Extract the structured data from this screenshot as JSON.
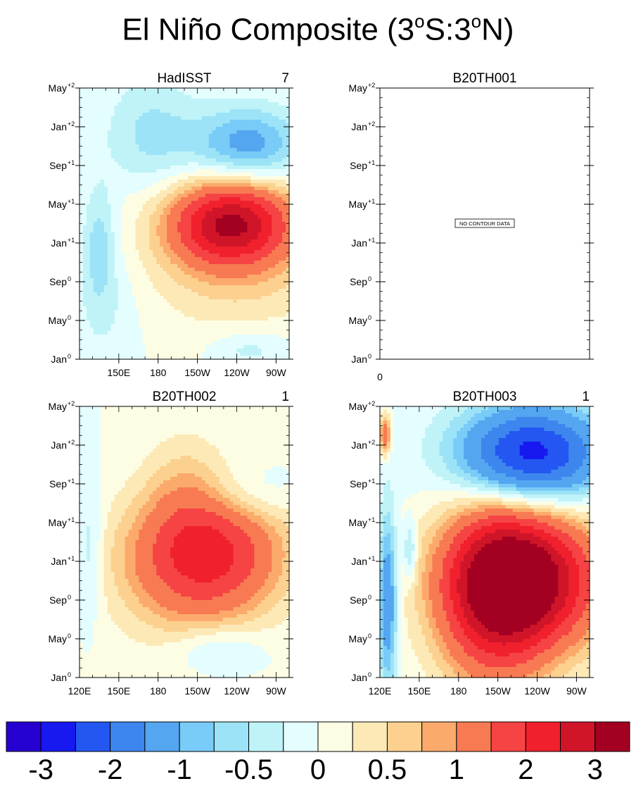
{
  "title": {
    "main": "El Niño Composite (3",
    "deg": "o",
    "mid": "S:3",
    "end": "N)"
  },
  "chart_data": [
    {
      "type": "heatmap",
      "title": "HadISST",
      "corner_label": "7",
      "xlabel": "",
      "ylabel": "",
      "x_ticks": [
        "150E",
        "180",
        "150W",
        "120W",
        "90W"
      ],
      "y_ticks": [
        {
          "base": "Jan",
          "sup": "0"
        },
        {
          "base": "May",
          "sup": "0"
        },
        {
          "base": "Sep",
          "sup": "0"
        },
        {
          "base": "Jan",
          "sup": "+1"
        },
        {
          "base": "May",
          "sup": "+1"
        },
        {
          "base": "Sep",
          "sup": "+1"
        },
        {
          "base": "Jan",
          "sup": "+2"
        },
        {
          "base": "May",
          "sup": "+2"
        }
      ],
      "xlim": [
        120,
        280
      ],
      "ylim": [
        0,
        28
      ],
      "features": [
        {
          "lon": 235,
          "month": 14,
          "value": 2.5,
          "sx": 42,
          "sy": 4
        },
        {
          "lon": 240,
          "month": 12,
          "value": 0.8,
          "sx": 70,
          "sy": 8
        },
        {
          "lon": 248,
          "month": 22,
          "value": -1.3,
          "sx": 42,
          "sy": 4
        },
        {
          "lon": 175,
          "month": 23,
          "value": -0.6,
          "sx": 35,
          "sy": 6
        },
        {
          "lon": 135,
          "month": 12,
          "value": -0.6,
          "sx": 12,
          "sy": 6
        },
        {
          "lon": 140,
          "month": 6,
          "value": -0.3,
          "sx": 25,
          "sy": 7
        },
        {
          "lon": 250,
          "month": 1,
          "value": -0.4,
          "sx": 30,
          "sy": 2
        }
      ]
    },
    {
      "type": "heatmap",
      "title": "B20TH001",
      "corner_label": "",
      "no_data_text": "NO CONTOUR DATA",
      "x_ticks_text": [
        "0"
      ],
      "y_ticks": [
        {
          "base": "Jan",
          "sup": "0"
        },
        {
          "base": "May",
          "sup": "0"
        },
        {
          "base": "Sep",
          "sup": "0"
        },
        {
          "base": "Jan",
          "sup": "+1"
        },
        {
          "base": "May",
          "sup": "+1"
        },
        {
          "base": "Sep",
          "sup": "+1"
        },
        {
          "base": "Jan",
          "sup": "+2"
        },
        {
          "base": "May",
          "sup": "+2"
        }
      ],
      "ylim": [
        0,
        28
      ],
      "features": []
    },
    {
      "type": "heatmap",
      "title": "B20TH002",
      "corner_label": "1",
      "x_ticks": [
        "120E",
        "150E",
        "180",
        "150W",
        "120W",
        "90W"
      ],
      "y_ticks": [
        {
          "base": "Jan",
          "sup": "0"
        },
        {
          "base": "May",
          "sup": "0"
        },
        {
          "base": "Sep",
          "sup": "0"
        },
        {
          "base": "Jan",
          "sup": "+1"
        },
        {
          "base": "May",
          "sup": "+1"
        },
        {
          "base": "Sep",
          "sup": "+1"
        },
        {
          "base": "Jan",
          "sup": "+2"
        },
        {
          "base": "May",
          "sup": "+2"
        }
      ],
      "xlim": [
        120,
        280
      ],
      "ylim": [
        0,
        28
      ],
      "features": [
        {
          "lon": 220,
          "month": 13,
          "value": 1.6,
          "sx": 55,
          "sy": 6
        },
        {
          "lon": 205,
          "month": 11,
          "value": 0.8,
          "sx": 60,
          "sy": 8
        },
        {
          "lon": 200,
          "month": 20,
          "value": 0.4,
          "sx": 30,
          "sy": 6
        },
        {
          "lon": 250,
          "month": 19,
          "value": -0.4,
          "sx": 35,
          "sy": 3
        },
        {
          "lon": 225,
          "month": 3,
          "value": -0.5,
          "sx": 35,
          "sy": 2.5
        },
        {
          "lon": 128,
          "month": 13,
          "value": -0.5,
          "sx": 10,
          "sy": 7
        }
      ]
    },
    {
      "type": "heatmap",
      "title": "B20TH003",
      "corner_label": "1",
      "x_ticks": [
        "120E",
        "150E",
        "180",
        "150W",
        "120W",
        "90W"
      ],
      "y_ticks": [
        {
          "base": "Jan",
          "sup": "0"
        },
        {
          "base": "May",
          "sup": "0"
        },
        {
          "base": "Sep",
          "sup": "0"
        },
        {
          "base": "Jan",
          "sup": "+1"
        },
        {
          "base": "May",
          "sup": "+1"
        },
        {
          "base": "Sep",
          "sup": "+1"
        },
        {
          "base": "Jan",
          "sup": "+2"
        },
        {
          "base": "May",
          "sup": "+2"
        }
      ],
      "xlim": [
        120,
        280
      ],
      "ylim": [
        0,
        28
      ],
      "features": [
        {
          "lon": 230,
          "month": 10,
          "value": 3.5,
          "sx": 55,
          "sy": 7
        },
        {
          "lon": 205,
          "month": 8,
          "value": 1.5,
          "sx": 40,
          "sy": 10
        },
        {
          "lon": 235,
          "month": 23,
          "value": -2.8,
          "sx": 55,
          "sy": 5
        },
        {
          "lon": 126,
          "month": 8,
          "value": -1.5,
          "sx": 7,
          "sy": 9
        },
        {
          "lon": 143,
          "month": 13,
          "value": -0.8,
          "sx": 5,
          "sy": 3
        },
        {
          "lon": 124,
          "month": 25,
          "value": 1.5,
          "sx": 4,
          "sy": 2
        }
      ]
    }
  ],
  "colorbar": {
    "labels": [
      "-3",
      "-2",
      "-1",
      "-0.5",
      "0",
      "0.5",
      "1",
      "2",
      "3"
    ],
    "colors": [
      "#2600d1",
      "#1719f0",
      "#2457f2",
      "#3d86ee",
      "#55a6f0",
      "#79cbf8",
      "#9ce3f7",
      "#bff3f7",
      "#e4fdff",
      "#fdfde4",
      "#fde9b6",
      "#fcd08e",
      "#fbaa6c",
      "#f87a52",
      "#f64343",
      "#f0202c",
      "#d01529",
      "#a40021"
    ]
  }
}
